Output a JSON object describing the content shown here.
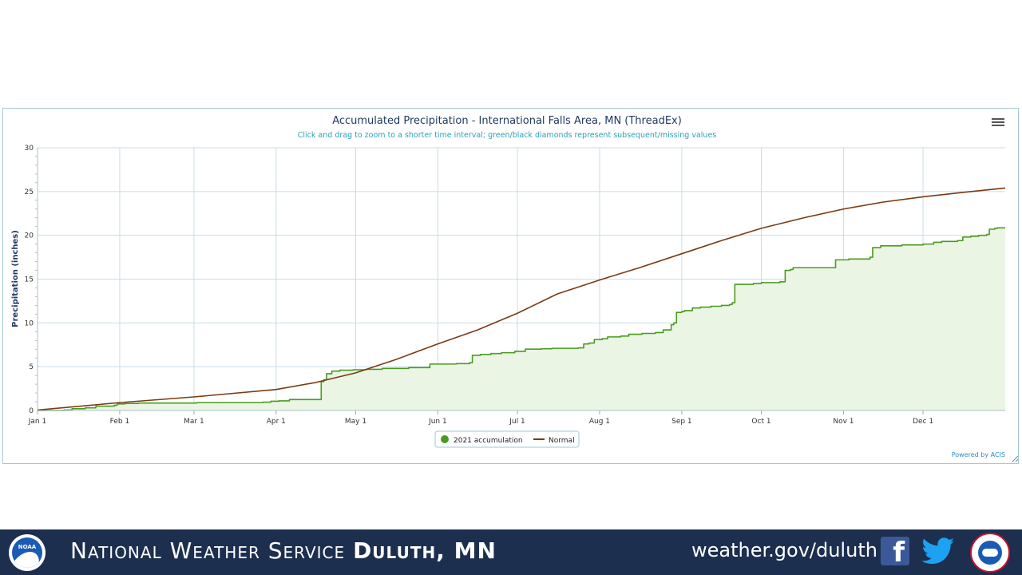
{
  "chart_data": {
    "type": "area",
    "title": "Accumulated Precipitation - International Falls Area, MN (ThreadEx)",
    "subtitle": "Click and drag to zoom to a shorter time interval; green/black diamonds represent subsequent/missing values",
    "xlabel": "",
    "ylabel": "Precipitation (inches)",
    "ylim": [
      0,
      30
    ],
    "xlim_days": [
      0,
      365
    ],
    "y_ticks": [
      "0",
      "5",
      "10",
      "15",
      "20",
      "25",
      "30"
    ],
    "y_tick_values": [
      0,
      5,
      10,
      15,
      20,
      25,
      30
    ],
    "x_ticks": [
      {
        "label": "Jan 1",
        "day": 0
      },
      {
        "label": "Feb 1",
        "day": 31
      },
      {
        "label": "Mar 1",
        "day": 59
      },
      {
        "label": "Apr 1",
        "day": 90
      },
      {
        "label": "May 1",
        "day": 120
      },
      {
        "label": "Jun 1",
        "day": 151
      },
      {
        "label": "Jul 1",
        "day": 181
      },
      {
        "label": "Aug 1",
        "day": 212
      },
      {
        "label": "Sep 1",
        "day": 243
      },
      {
        "label": "Oct 1",
        "day": 273
      },
      {
        "label": "Nov 1",
        "day": 304
      },
      {
        "label": "Dec 1",
        "day": 334
      }
    ],
    "grid": true,
    "legend_position": "bottom-center",
    "credit": "Powered by ACIS",
    "series": [
      {
        "name": "2021 accumulation",
        "color": "#4a9a22",
        "fill": "#eaf5e4",
        "step": true,
        "points": [
          [
            0,
            0
          ],
          [
            10,
            0.05
          ],
          [
            13,
            0.2
          ],
          [
            18,
            0.3
          ],
          [
            22,
            0.5
          ],
          [
            29,
            0.6
          ],
          [
            30,
            0.75
          ],
          [
            33,
            0.8
          ],
          [
            38,
            0.85
          ],
          [
            42,
            0.85
          ],
          [
            51,
            0.85
          ],
          [
            56,
            0.85
          ],
          [
            60,
            0.9
          ],
          [
            68,
            0.9
          ],
          [
            74,
            0.9
          ],
          [
            78,
            0.9
          ],
          [
            85,
            0.95
          ],
          [
            88,
            1.05
          ],
          [
            91,
            1.1
          ],
          [
            95,
            1.25
          ],
          [
            104,
            1.25
          ],
          [
            107,
            3.3
          ],
          [
            108,
            3.5
          ],
          [
            109,
            4.2
          ],
          [
            111,
            4.5
          ],
          [
            114,
            4.6
          ],
          [
            119,
            4.65
          ],
          [
            124,
            4.7
          ],
          [
            130,
            4.8
          ],
          [
            135,
            4.8
          ],
          [
            140,
            4.9
          ],
          [
            145,
            4.9
          ],
          [
            148,
            5.3
          ],
          [
            158,
            5.35
          ],
          [
            160,
            5.35
          ],
          [
            163,
            5.45
          ],
          [
            164,
            6.3
          ],
          [
            167,
            6.4
          ],
          [
            171,
            6.5
          ],
          [
            175,
            6.6
          ],
          [
            180,
            6.75
          ],
          [
            184,
            7.0
          ],
          [
            190,
            7.05
          ],
          [
            194,
            7.1
          ],
          [
            198,
            7.1
          ],
          [
            204,
            7.15
          ],
          [
            206,
            7.6
          ],
          [
            208,
            7.7
          ],
          [
            210,
            8.1
          ],
          [
            213,
            8.2
          ],
          [
            215,
            8.4
          ],
          [
            220,
            8.5
          ],
          [
            223,
            8.7
          ],
          [
            228,
            8.8
          ],
          [
            233,
            8.9
          ],
          [
            236,
            9.2
          ],
          [
            238,
            9.2
          ],
          [
            239,
            9.8
          ],
          [
            240,
            10.0
          ],
          [
            241,
            11.2
          ],
          [
            243,
            11.3
          ],
          [
            244,
            11.4
          ],
          [
            247,
            11.7
          ],
          [
            250,
            11.8
          ],
          [
            254,
            11.9
          ],
          [
            258,
            12.0
          ],
          [
            261,
            12.1
          ],
          [
            262,
            12.3
          ],
          [
            263,
            14.4
          ],
          [
            270,
            14.5
          ],
          [
            273,
            14.6
          ],
          [
            277,
            14.6
          ],
          [
            280,
            14.7
          ],
          [
            282,
            16.0
          ],
          [
            284,
            16.1
          ],
          [
            285,
            16.3
          ],
          [
            291,
            16.3
          ],
          [
            297,
            16.3
          ],
          [
            299,
            16.3
          ],
          [
            301,
            17.2
          ],
          [
            306,
            17.3
          ],
          [
            312,
            17.3
          ],
          [
            314,
            17.5
          ],
          [
            315,
            18.6
          ],
          [
            318,
            18.8
          ],
          [
            320,
            18.8
          ],
          [
            326,
            18.9
          ],
          [
            330,
            18.9
          ],
          [
            334,
            19.0
          ],
          [
            338,
            19.2
          ],
          [
            341,
            19.3
          ],
          [
            344,
            19.3
          ],
          [
            347,
            19.4
          ],
          [
            349,
            19.8
          ],
          [
            352,
            19.9
          ],
          [
            355,
            20.0
          ],
          [
            358,
            20.1
          ],
          [
            359,
            20.7
          ],
          [
            361,
            20.8
          ],
          [
            362,
            20.85
          ],
          [
            365,
            20.85
          ]
        ]
      },
      {
        "name": "Normal",
        "color": "#7b3a10",
        "step": false,
        "points": [
          [
            0,
            0.05
          ],
          [
            31,
            0.9
          ],
          [
            59,
            1.55
          ],
          [
            90,
            2.4
          ],
          [
            105,
            3.2
          ],
          [
            120,
            4.3
          ],
          [
            135,
            5.8
          ],
          [
            151,
            7.6
          ],
          [
            166,
            9.2
          ],
          [
            181,
            11.1
          ],
          [
            196,
            13.3
          ],
          [
            212,
            14.9
          ],
          [
            227,
            16.3
          ],
          [
            243,
            17.9
          ],
          [
            258,
            19.4
          ],
          [
            273,
            20.8
          ],
          [
            289,
            22.0
          ],
          [
            304,
            23.0
          ],
          [
            319,
            23.8
          ],
          [
            334,
            24.4
          ],
          [
            349,
            24.9
          ],
          [
            365,
            25.4
          ]
        ]
      }
    ]
  },
  "footer": {
    "noaa_logo_text": "NOAA",
    "title_prefix": "National Weather Service",
    "title_office": "Duluth, MN",
    "url": "weather.gov/duluth",
    "facebook_glyph": "f",
    "icons": [
      "noaa-logo",
      "facebook-icon",
      "twitter-icon",
      "nws-logo"
    ]
  }
}
